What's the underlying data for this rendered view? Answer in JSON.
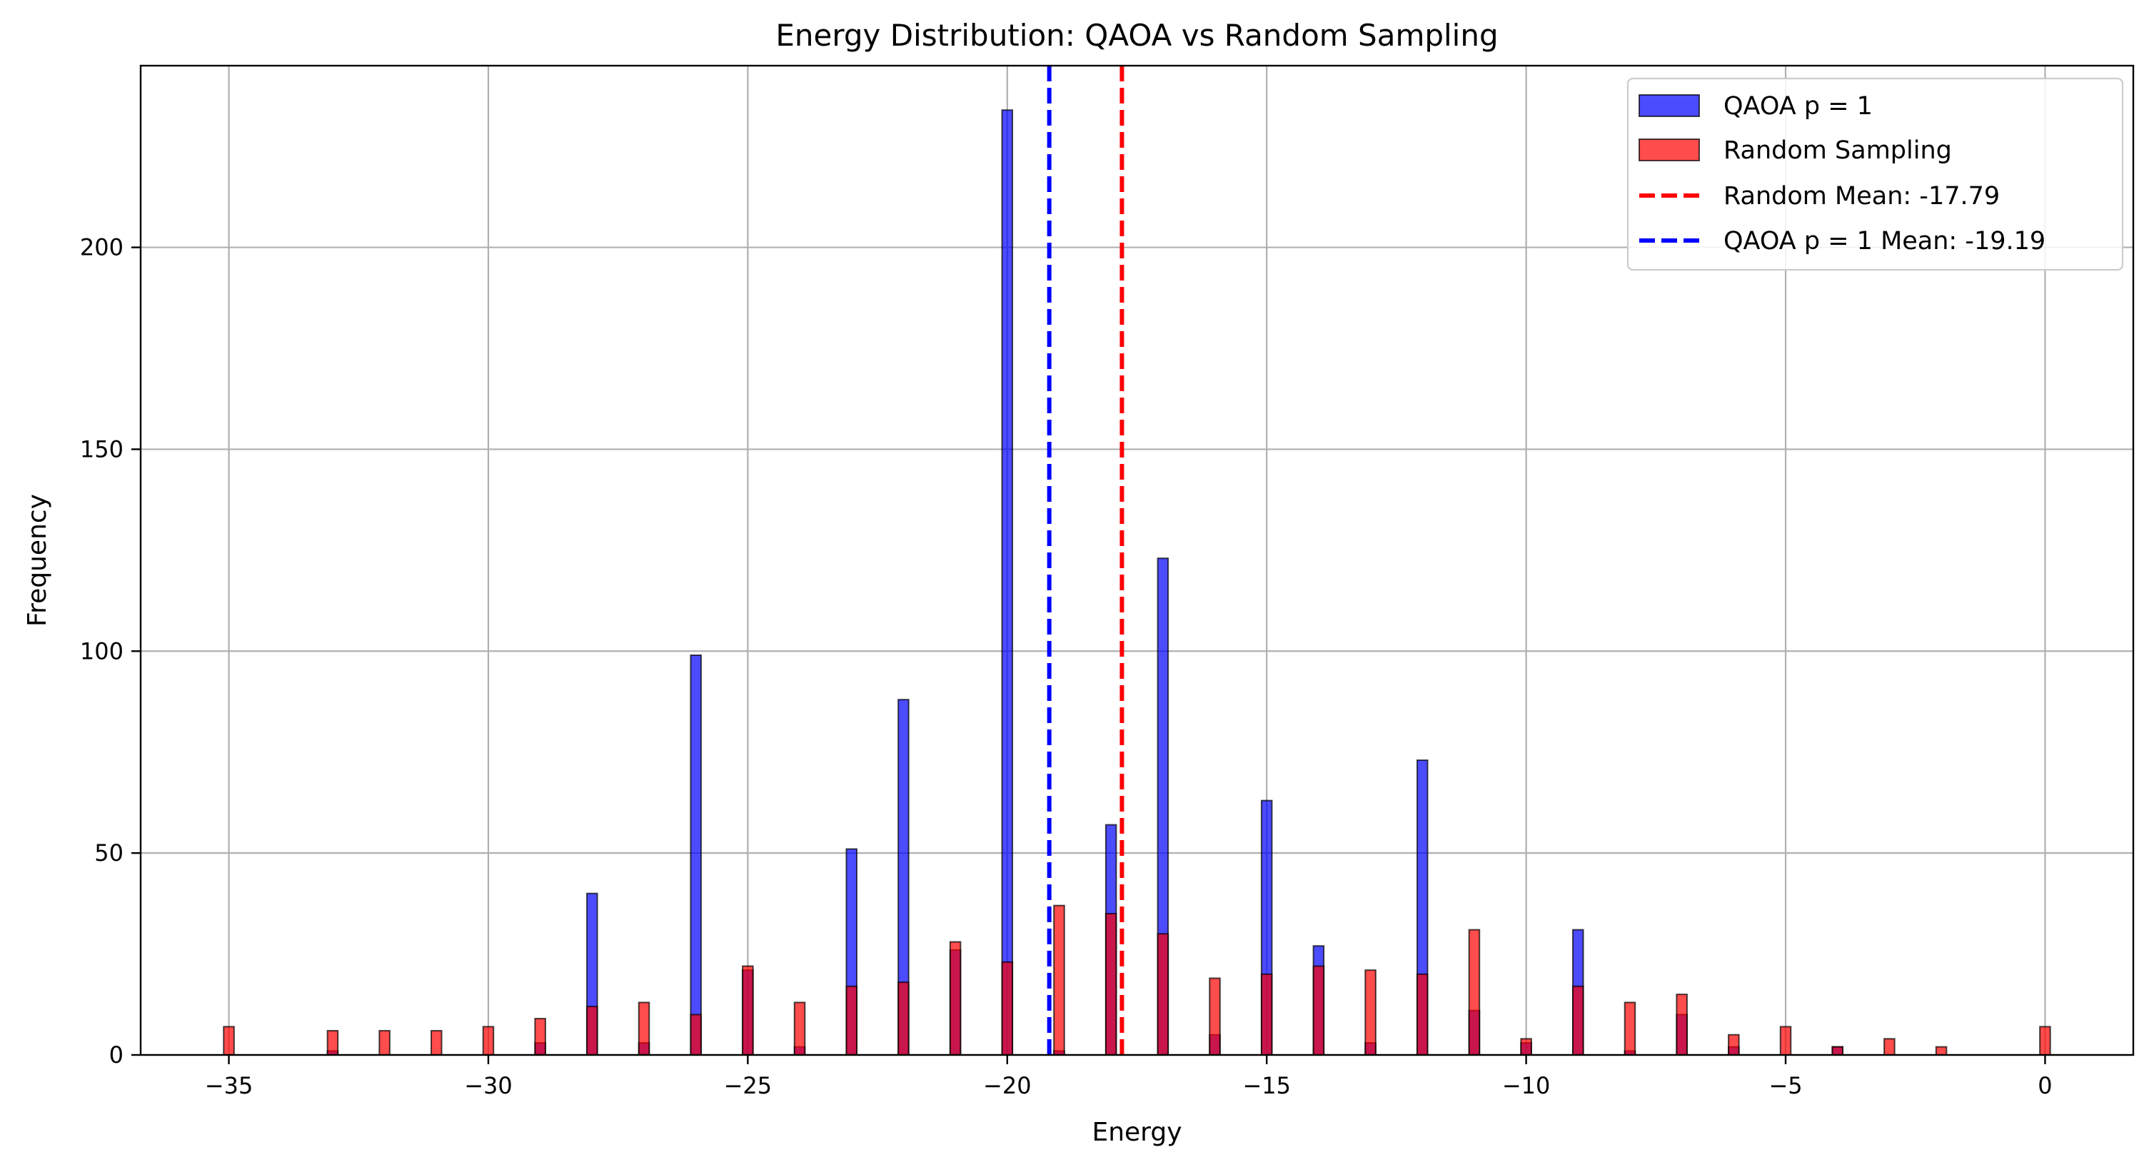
{
  "chart_data": {
    "type": "bar",
    "title": "Energy Distribution: QAOA vs Random Sampling",
    "xlabel": "Energy",
    "ylabel": "Frequency",
    "xlim": [
      -36.7,
      1.7
    ],
    "ylim": [
      0,
      245
    ],
    "xticks": [
      -35,
      -30,
      -25,
      -20,
      -15,
      -10,
      -5,
      0
    ],
    "yticks": [
      0,
      50,
      100,
      150,
      200
    ],
    "grid": true,
    "legend_position": "top-right",
    "series": [
      {
        "name": "QAOA p = 1",
        "color": "#0000ff",
        "opacity": 0.7,
        "x": [
          -33,
          -29,
          -28,
          -27,
          -26,
          -25,
          -24,
          -23,
          -22,
          -21,
          -20,
          -19,
          -18,
          -17,
          -16,
          -15,
          -14,
          -13,
          -12,
          -11,
          -10,
          -9,
          -8,
          -7,
          -6,
          -4
        ],
        "values": [
          1,
          3,
          40,
          3,
          99,
          21,
          2,
          51,
          88,
          26,
          234,
          1,
          57,
          123,
          5,
          63,
          27,
          3,
          73,
          11,
          3,
          31,
          1,
          10,
          2,
          2
        ]
      },
      {
        "name": "Random Sampling",
        "color": "#ff0000",
        "opacity": 0.7,
        "x": [
          -35,
          -33,
          -32,
          -31,
          -30,
          -29,
          -28,
          -27,
          -26,
          -25,
          -24,
          -23,
          -22,
          -21,
          -20,
          -19,
          -18,
          -17,
          -16,
          -15,
          -14,
          -13,
          -12,
          -11,
          -10,
          -9,
          -8,
          -7,
          -6,
          -5,
          -4,
          -3,
          -2,
          0
        ],
        "values": [
          7,
          6,
          6,
          6,
          7,
          9,
          12,
          13,
          10,
          22,
          13,
          17,
          18,
          28,
          23,
          37,
          35,
          30,
          19,
          20,
          22,
          21,
          20,
          31,
          4,
          17,
          13,
          15,
          5,
          7,
          2,
          4,
          2,
          7
        ]
      }
    ],
    "reference_lines": [
      {
        "name": "Random Mean: -17.79",
        "x": -17.79,
        "color": "#ff0000",
        "style": "dashed"
      },
      {
        "name": "QAOA p = 1 Mean: -19.19",
        "x": -19.19,
        "color": "#0000ff",
        "style": "dashed"
      }
    ]
  }
}
